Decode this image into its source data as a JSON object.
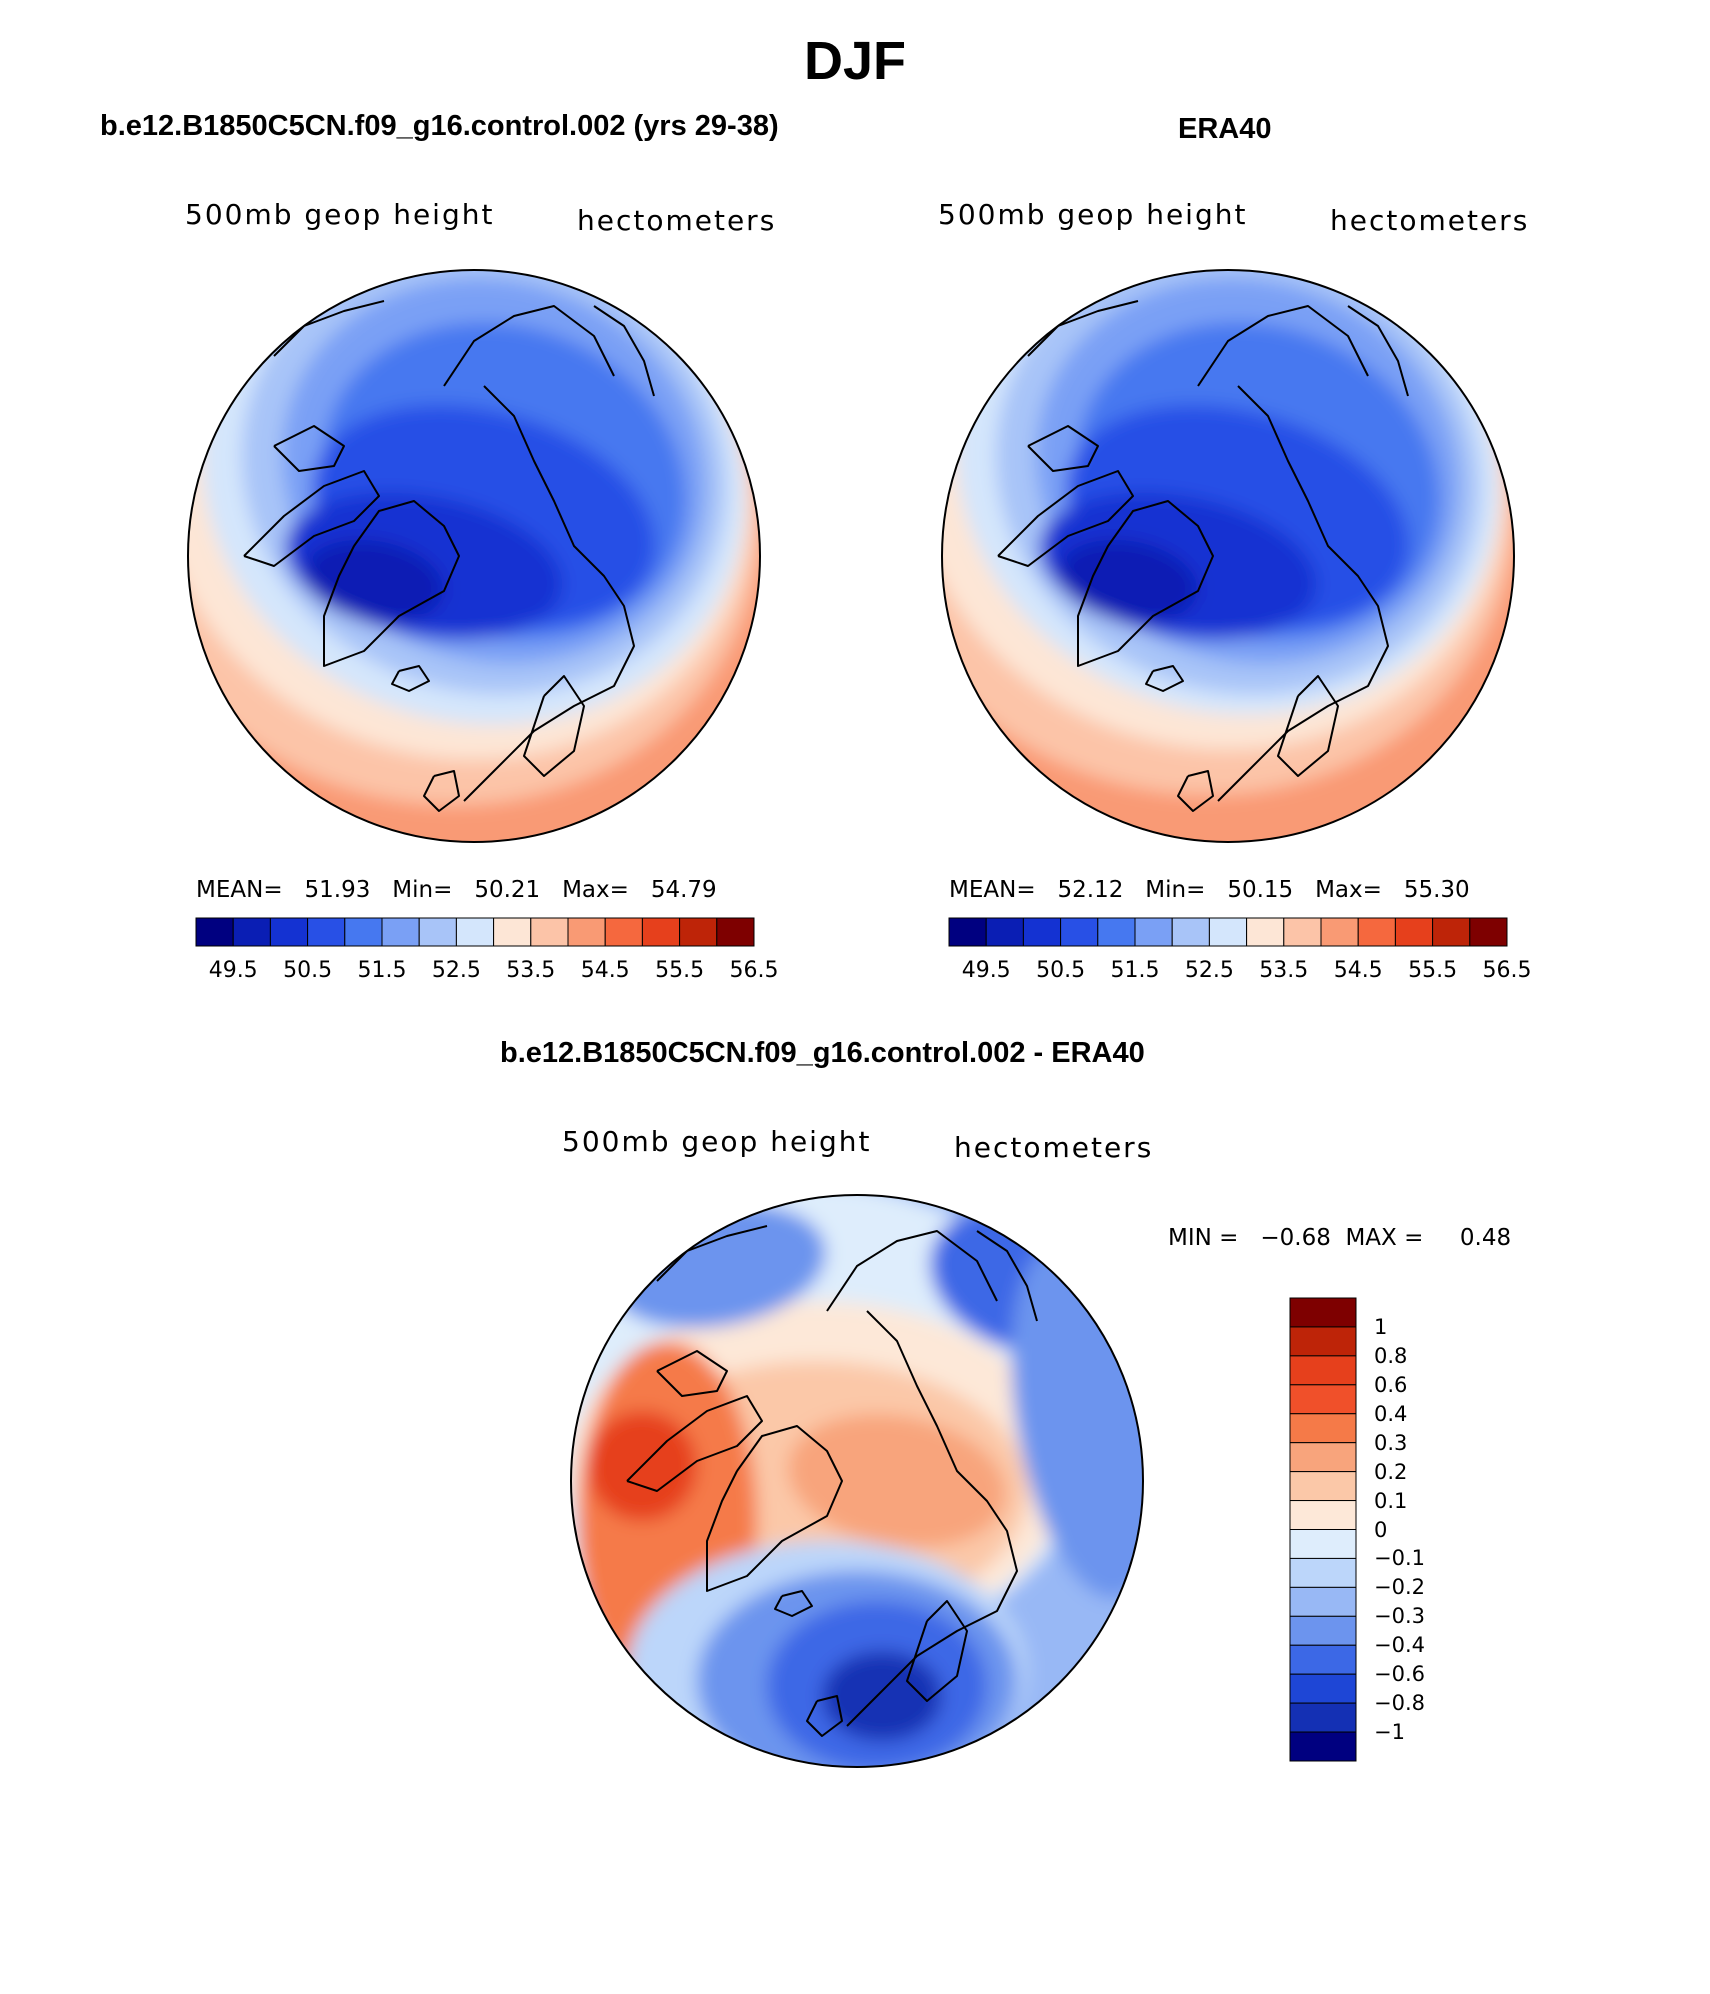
{
  "main_title": "DJF",
  "panels": [
    {
      "title": "b.e12.B1850C5CN.f09_g16.control.002 (yrs 29-38)",
      "variable": "500mb geop height",
      "units": "hectometers",
      "stats": "MEAN=   51.93   Min=   50.21   Max=   54.79",
      "colorbar_ticks": [
        "49.5",
        "50.5",
        "51.5",
        "52.5",
        "53.5",
        "54.5",
        "55.5",
        "56.5"
      ]
    },
    {
      "title": "ERA40",
      "variable": "500mb geop height",
      "units": "hectometers",
      "stats": "MEAN=   52.12   Min=   50.15   Max=   55.30",
      "colorbar_ticks": [
        "49.5",
        "50.5",
        "51.5",
        "52.5",
        "53.5",
        "54.5",
        "55.5",
        "56.5"
      ]
    }
  ],
  "diff_panel": {
    "title": "b.e12.B1850C5CN.f09_g16.control.002 - ERA40",
    "variable": "500mb geop height",
    "units": "hectometers",
    "stats": "MIN =   −0.68  MAX =     0.48",
    "colorbar_labels": [
      "1",
      "0.8",
      "0.6",
      "0.4",
      "0.3",
      "0.2",
      "0.1",
      "0",
      "−0.1",
      "−0.2",
      "−0.3",
      "−0.4",
      "−0.6",
      "−0.8",
      "−1"
    ]
  },
  "colors": {
    "abs_palette": [
      "#000080",
      "#0a1eb4",
      "#1432d2",
      "#2850e6",
      "#4678f0",
      "#7aa0f5",
      "#a8c4f8",
      "#d4e6fc",
      "#fde6d6",
      "#fcc4a8",
      "#f99a74",
      "#f5683e",
      "#e6401c",
      "#be2408",
      "#7e0000"
    ],
    "diff_palette": [
      "#7e0000",
      "#be2408",
      "#e6401c",
      "#f0502a",
      "#f57a48",
      "#f8a47c",
      "#fbc8a8",
      "#fde8d8",
      "#deedfc",
      "#bcd6fa",
      "#98b8f5",
      "#6c94ee",
      "#3c68e6",
      "#1e46d6",
      "#1430b4",
      "#000080"
    ]
  }
}
